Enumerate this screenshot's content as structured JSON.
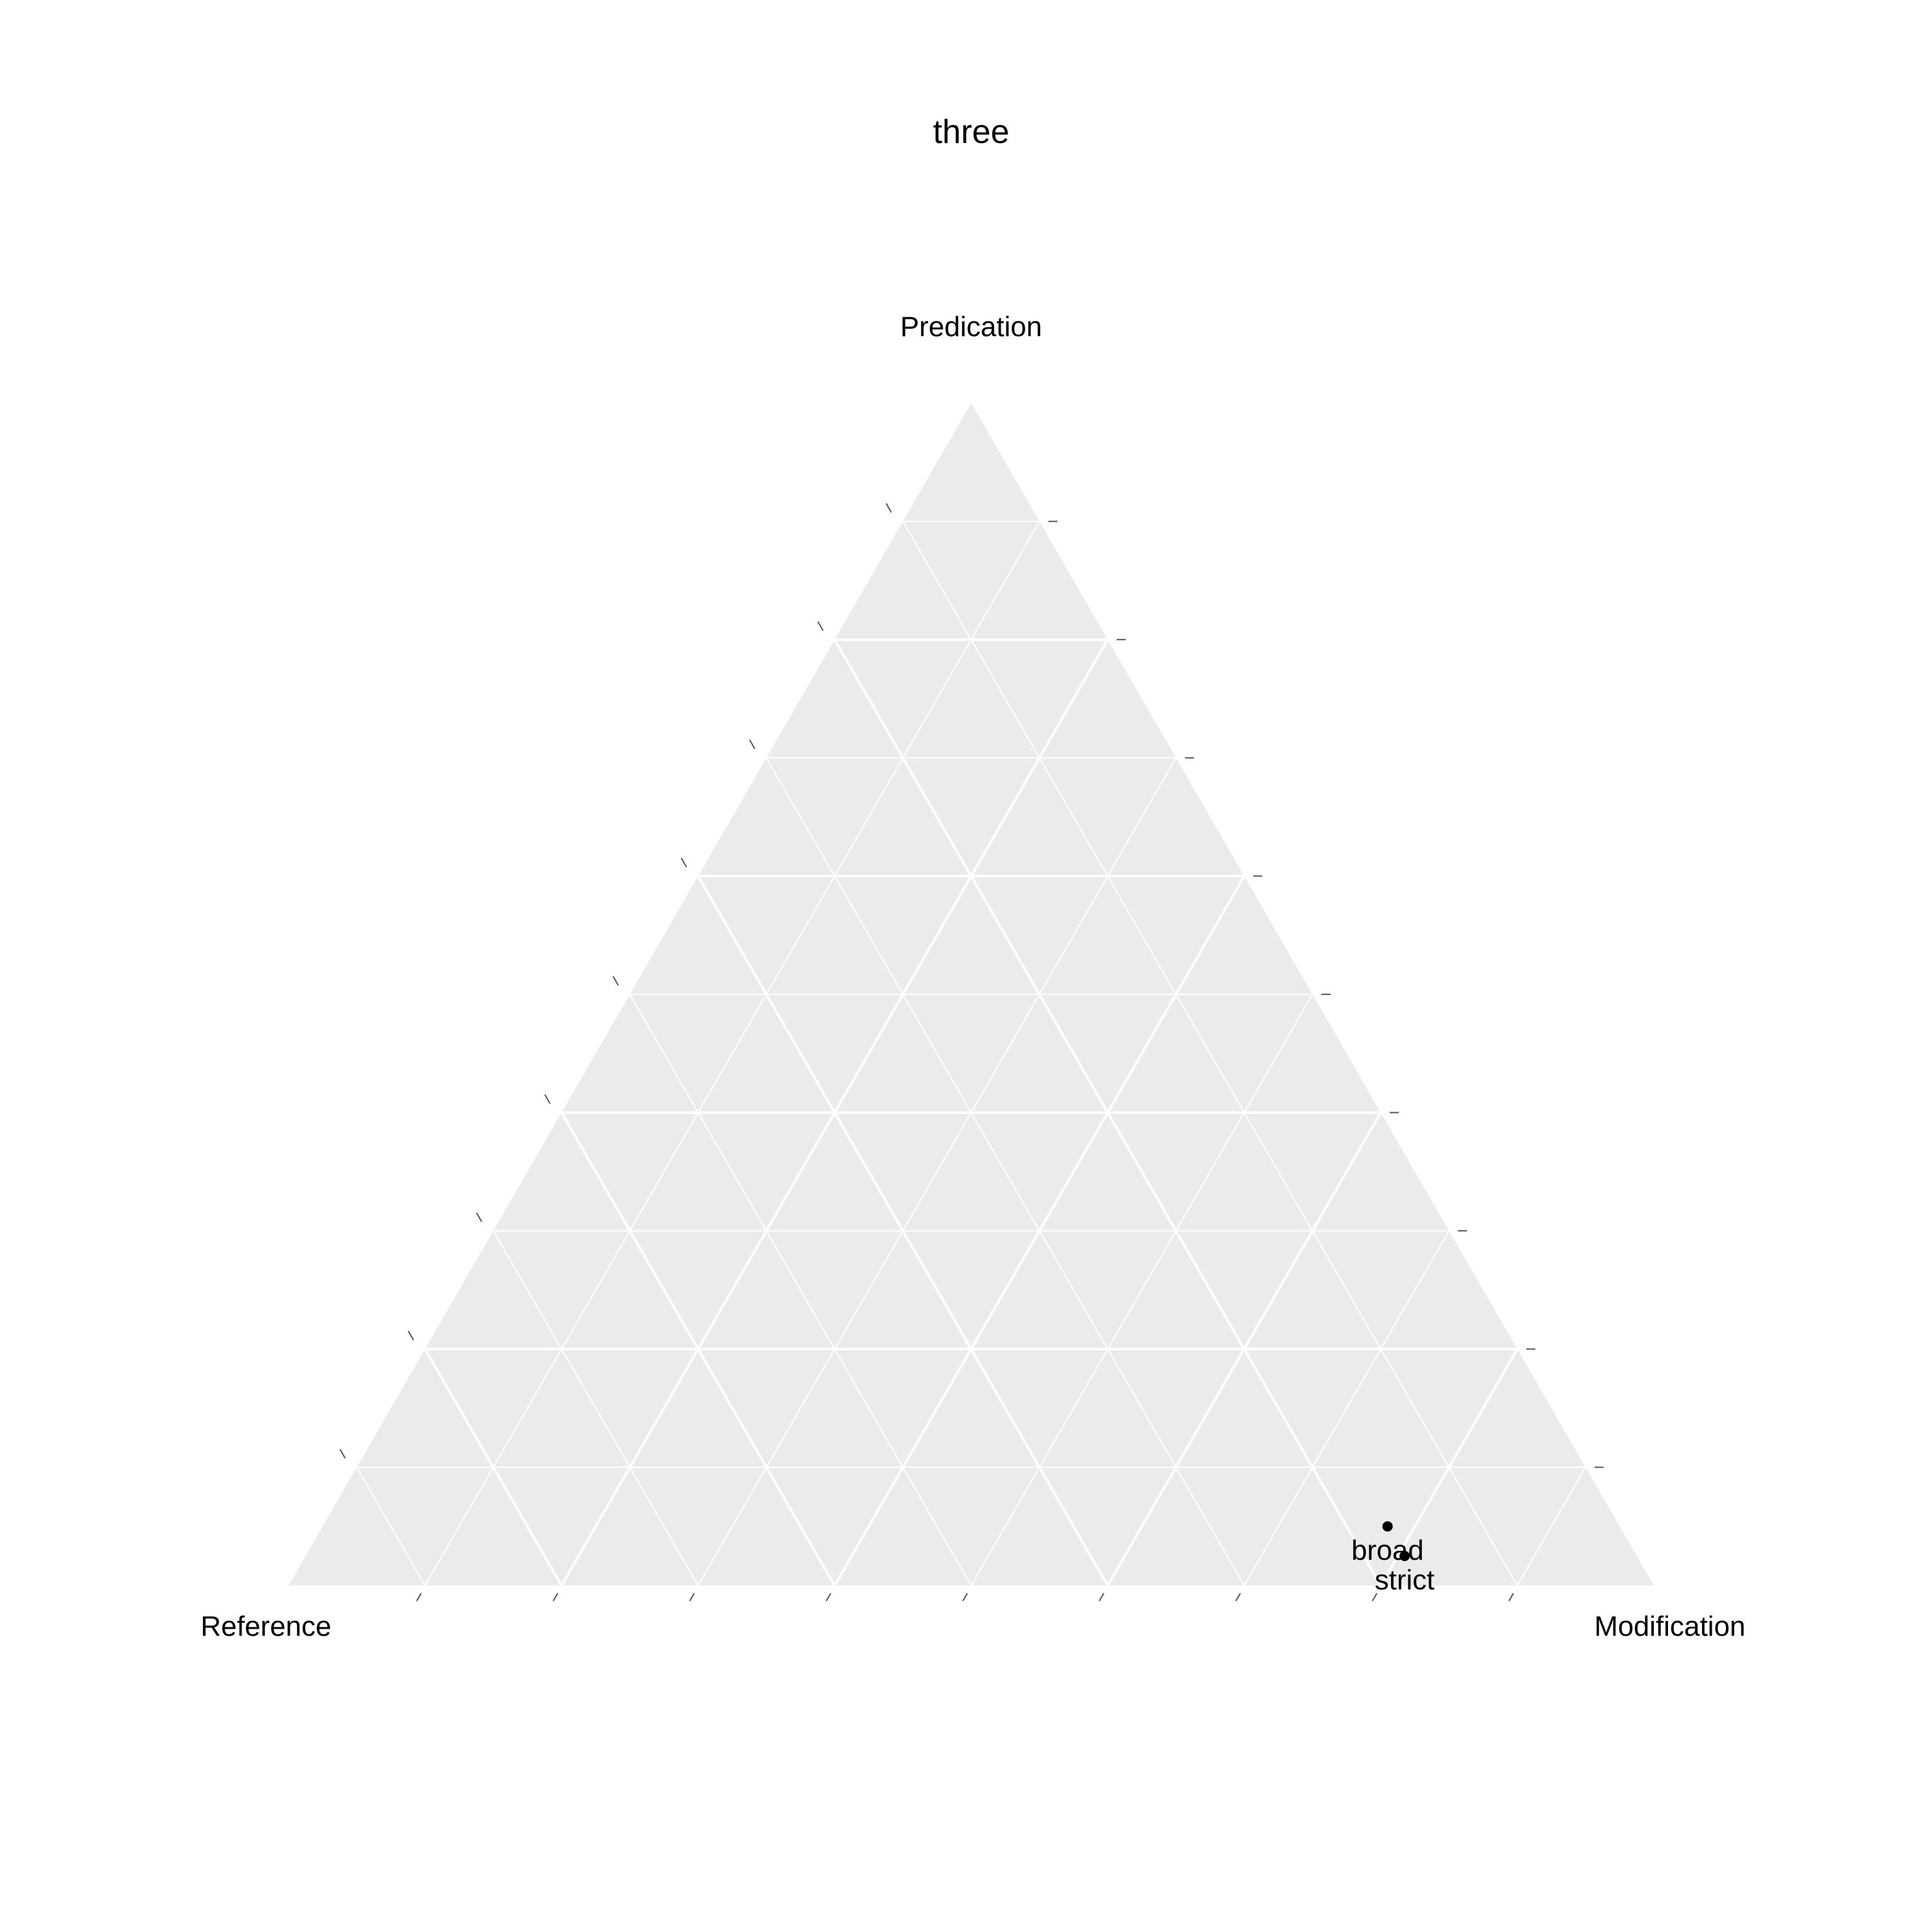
{
  "chart_data": {
    "type": "scatter",
    "subtype": "ternary",
    "title": "three",
    "axes": {
      "top": "Predication",
      "left": "Reference",
      "right": "Modification"
    },
    "grid": true,
    "grid_major_step": 0.2,
    "grid_minor_step": 0.1,
    "ticks_step": 0.1,
    "colors": {
      "panel": "#ebebeb",
      "grid": "#ffffff",
      "points": "#000000",
      "text": "#000000"
    },
    "points": [
      {
        "label": "broad",
        "predication": 0.05,
        "reference": 0.17,
        "modification": 0.78
      },
      {
        "label": "strict",
        "predication": 0.025,
        "reference": 0.17,
        "modification": 0.805
      }
    ]
  }
}
